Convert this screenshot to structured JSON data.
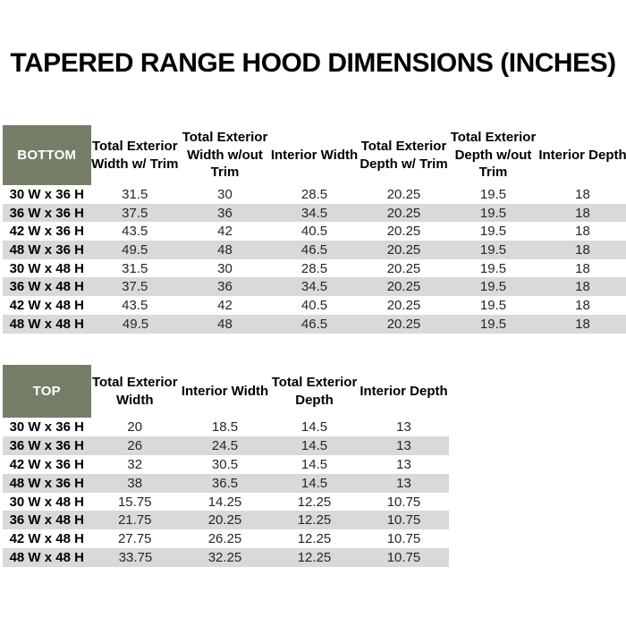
{
  "title": "TAPERED RANGE HOOD DIMENSIONS (INCHES)",
  "colors": {
    "header_green": "#757f67",
    "row_stripe_gray": "#d9d9d9",
    "row_white": "#ffffff"
  },
  "bottom_table": {
    "label": "BOTTOM",
    "columns": [
      "Total Exterior Width w/ Trim",
      "Total Exterior Width w/out Trim",
      "Interior Width",
      "Total Exterior Depth w/ Trim",
      "Total Exterior Depth w/out Trim",
      "Interior Depth"
    ],
    "rows": [
      {
        "size": "30 W x 36 H",
        "values": [
          "31.5",
          "30",
          "28.5",
          "20.25",
          "19.5",
          "18"
        ]
      },
      {
        "size": "36 W x 36 H",
        "values": [
          "37.5",
          "36",
          "34.5",
          "20.25",
          "19.5",
          "18"
        ]
      },
      {
        "size": "42 W x 36 H",
        "values": [
          "43.5",
          "42",
          "40.5",
          "20.25",
          "19.5",
          "18"
        ]
      },
      {
        "size": "48 W x 36 H",
        "values": [
          "49.5",
          "48",
          "46.5",
          "20.25",
          "19.5",
          "18"
        ]
      },
      {
        "size": "30 W x 48 H",
        "values": [
          "31.5",
          "30",
          "28.5",
          "20.25",
          "19.5",
          "18"
        ]
      },
      {
        "size": "36 W x 48 H",
        "values": [
          "37.5",
          "36",
          "34.5",
          "20.25",
          "19.5",
          "18"
        ]
      },
      {
        "size": "42 W x 48 H",
        "values": [
          "43.5",
          "42",
          "40.5",
          "20.25",
          "19.5",
          "18"
        ]
      },
      {
        "size": "48 W x 48 H",
        "values": [
          "49.5",
          "48",
          "46.5",
          "20.25",
          "19.5",
          "18"
        ]
      }
    ]
  },
  "top_table": {
    "label": "TOP",
    "columns": [
      "Total Exterior Width",
      "Interior Width",
      "Total Exterior Depth",
      "Interior Depth"
    ],
    "rows": [
      {
        "size": "30 W x 36 H",
        "values": [
          "20",
          "18.5",
          "14.5",
          "13"
        ]
      },
      {
        "size": "36 W x 36 H",
        "values": [
          "26",
          "24.5",
          "14.5",
          "13"
        ]
      },
      {
        "size": "42 W x 36 H",
        "values": [
          "32",
          "30.5",
          "14.5",
          "13"
        ]
      },
      {
        "size": "48 W x 36 H",
        "values": [
          "38",
          "36.5",
          "14.5",
          "13"
        ]
      },
      {
        "size": "30 W x 48 H",
        "values": [
          "15.75",
          "14.25",
          "12.25",
          "10.75"
        ]
      },
      {
        "size": "36 W x 48 H",
        "values": [
          "21.75",
          "20.25",
          "12.25",
          "10.75"
        ]
      },
      {
        "size": "42 W x 48 H",
        "values": [
          "27.75",
          "26.25",
          "12.25",
          "10.75"
        ]
      },
      {
        "size": "48 W x 48 H",
        "values": [
          "33.75",
          "32.25",
          "12.25",
          "10.75"
        ]
      }
    ]
  }
}
